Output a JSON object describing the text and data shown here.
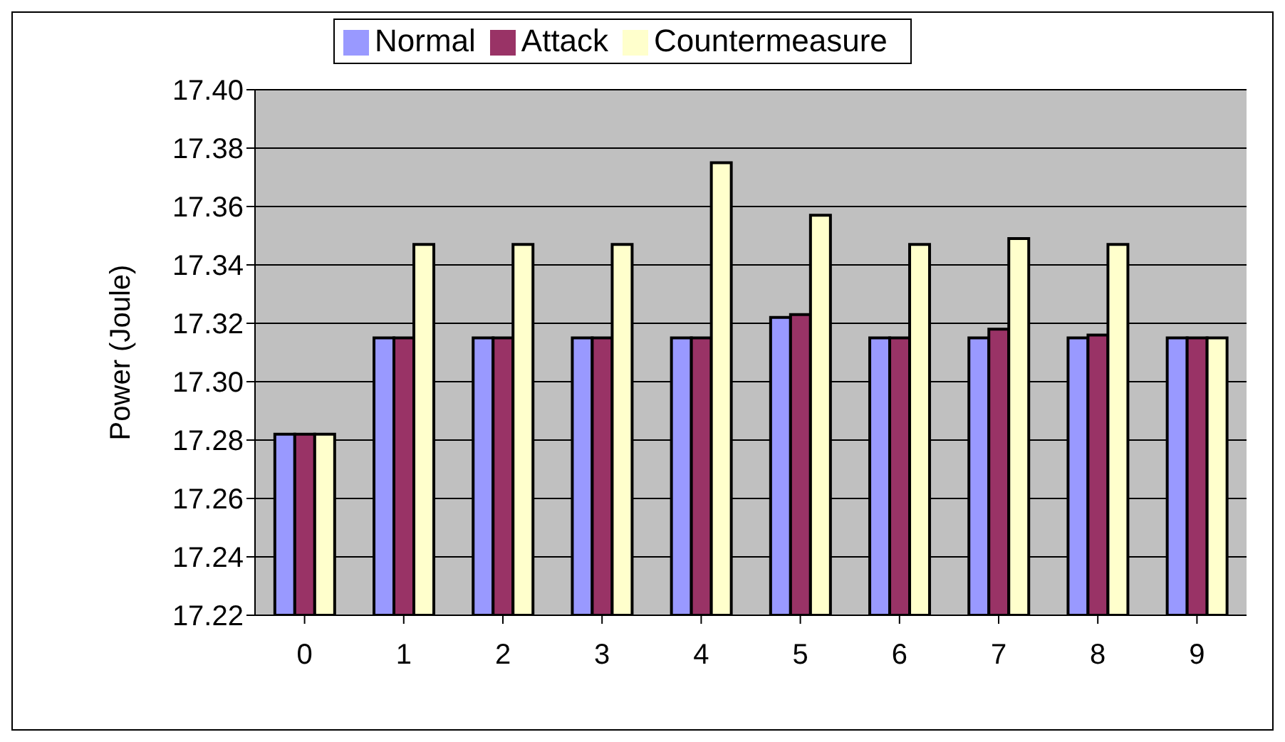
{
  "chart_data": {
    "type": "bar",
    "ylabel": "Power (Joule)",
    "categories": [
      "0",
      "1",
      "2",
      "3",
      "4",
      "5",
      "6",
      "7",
      "8",
      "9"
    ],
    "series": [
      {
        "name": "Normal",
        "color": "#9999ff",
        "values": [
          17.282,
          17.315,
          17.315,
          17.315,
          17.315,
          17.322,
          17.315,
          17.315,
          17.315,
          17.315
        ]
      },
      {
        "name": "Attack",
        "color": "#993366",
        "values": [
          17.282,
          17.315,
          17.315,
          17.315,
          17.315,
          17.323,
          17.315,
          17.318,
          17.316,
          17.315
        ]
      },
      {
        "name": "Countermeasure",
        "color": "#ffffcc",
        "values": [
          17.282,
          17.347,
          17.347,
          17.347,
          17.375,
          17.357,
          17.347,
          17.349,
          17.347,
          17.315
        ]
      }
    ],
    "ylim": [
      17.22,
      17.4
    ],
    "yticks": [
      17.22,
      17.24,
      17.26,
      17.28,
      {
        "value": 17.3,
        "label": "17.30"
      },
      17.32,
      17.34,
      17.36,
      17.38,
      {
        "value": 17.4,
        "label": "17.40"
      }
    ],
    "grid": "y",
    "legend": "top"
  }
}
